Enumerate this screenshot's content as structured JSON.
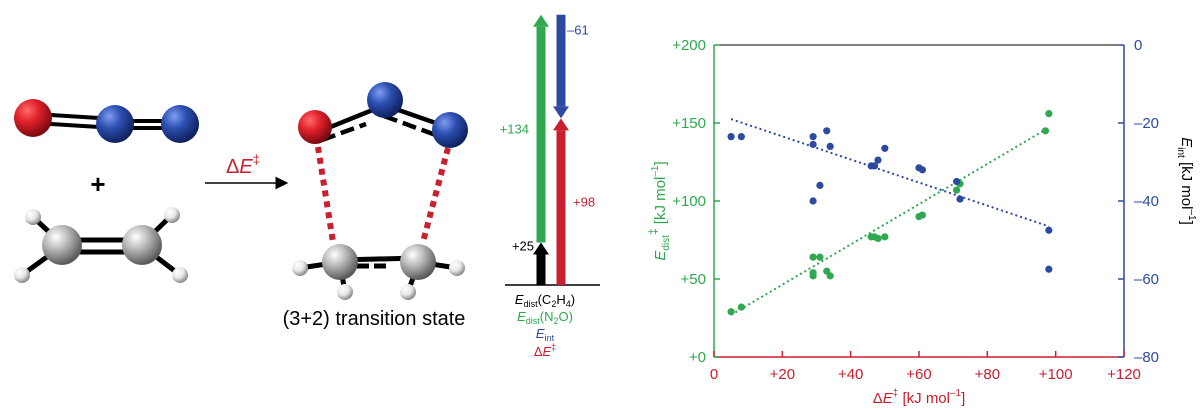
{
  "colors": {
    "green": "#2fa84f",
    "blue": "#2d4aa0",
    "red": "#c8202e",
    "black": "#000000",
    "oxygen": "#d0202a",
    "nitrogen": "#2c4fb0",
    "carbon": "#b8b8b8",
    "hydrogen": "#e6e6e6"
  },
  "reaction": {
    "plus": "+",
    "arrow_label_delta": "Δ",
    "arrow_label_E": "E",
    "arrow_label_sup": "‡",
    "ts_caption": "(3+2) transition state"
  },
  "energy_diagram": {
    "bars": [
      {
        "name": "E_dist(C2H4)",
        "value": 25,
        "label": "+25",
        "color": "#000000"
      },
      {
        "name": "E_dist(N2O)",
        "value": 134,
        "label": "+134",
        "color": "#2fa84f"
      },
      {
        "name": "E_int",
        "value": -61,
        "label": "–61",
        "color": "#2d4aa0"
      },
      {
        "name": "ΔE‡",
        "value": 98,
        "label": "+98",
        "color": "#c8202e"
      }
    ],
    "legend": {
      "l1_E": "E",
      "l1_sub": "dist",
      "l1_rest": "(C",
      "l1_sub2": "2",
      "l1_mid": "H",
      "l1_sub3": "4",
      "l1_end": ")",
      "l2_E": "E",
      "l2_sub": "dist",
      "l2_rest": "(N",
      "l2_sub2": "2",
      "l2_end": "O)",
      "l3_E": "E",
      "l3_sub": "int",
      "l4_delta": "Δ",
      "l4_E": "E",
      "l4_sup": "‡"
    }
  },
  "chart_data": {
    "type": "scatter",
    "xlim": [
      0,
      120
    ],
    "ylim_left": [
      0,
      200
    ],
    "ylim_right": [
      -80,
      0
    ],
    "x_ticks": [
      0,
      20,
      40,
      60,
      80,
      100,
      120
    ],
    "x_tick_labels": [
      "0",
      "+20",
      "+40",
      "+60",
      "+80",
      "+100",
      "+120"
    ],
    "y_left_ticks": [
      0,
      50,
      100,
      150,
      200
    ],
    "y_left_tick_labels": [
      "+0",
      "+50",
      "+100",
      "+150",
      "+200"
    ],
    "y_right_ticks": [
      -80,
      -60,
      -40,
      -20,
      0
    ],
    "y_right_tick_labels": [
      "–80",
      "–60",
      "–40",
      "–20",
      "0"
    ],
    "xlabel": {
      "delta": "Δ",
      "E": "E",
      "sup": "‡",
      "unit": " [kJ mol",
      "unit_sup": "–1",
      "end": "]"
    },
    "ylabel_left": {
      "E": "E",
      "sub": "dist",
      "sup": "‡",
      "unit": " [kJ mol",
      "unit_sup": "–1",
      "end": "]"
    },
    "ylabel_right": {
      "E": "E",
      "sub": "int",
      "unit": " [kJ mol",
      "unit_sup": "–1",
      "end": "]"
    },
    "series": [
      {
        "axis": "left",
        "color": "#2fa84f",
        "points": [
          [
            5,
            29
          ],
          [
            8,
            32
          ],
          [
            29,
            52
          ],
          [
            29,
            54
          ],
          [
            29,
            64
          ],
          [
            31,
            64
          ],
          [
            33,
            55
          ],
          [
            34,
            52
          ],
          [
            46,
            77
          ],
          [
            47,
            77
          ],
          [
            48,
            76
          ],
          [
            50,
            77
          ],
          [
            60,
            90
          ],
          [
            61,
            91
          ],
          [
            71,
            107
          ],
          [
            72,
            111
          ],
          [
            97,
            145
          ],
          [
            98,
            156
          ]
        ],
        "trend": [
          [
            5,
            27
          ],
          [
            98,
            147
          ]
        ]
      },
      {
        "axis": "right",
        "color": "#2d4aa0",
        "points": [
          [
            5,
            -23.5
          ],
          [
            8,
            -23.5
          ],
          [
            29,
            -23.5
          ],
          [
            29,
            -25.5
          ],
          [
            29,
            -40
          ],
          [
            31,
            -36
          ],
          [
            33,
            -22
          ],
          [
            34,
            -26
          ],
          [
            46,
            -31
          ],
          [
            47,
            -31
          ],
          [
            48,
            -29.5
          ],
          [
            50,
            -26.5
          ],
          [
            60,
            -31.5
          ],
          [
            61,
            -32
          ],
          [
            71,
            -35
          ],
          [
            72,
            -39.5
          ],
          [
            98,
            -47.5
          ],
          [
            98,
            -57.5
          ]
        ],
        "trend": [
          [
            5,
            -19
          ],
          [
            98,
            -46.5
          ]
        ]
      }
    ]
  }
}
